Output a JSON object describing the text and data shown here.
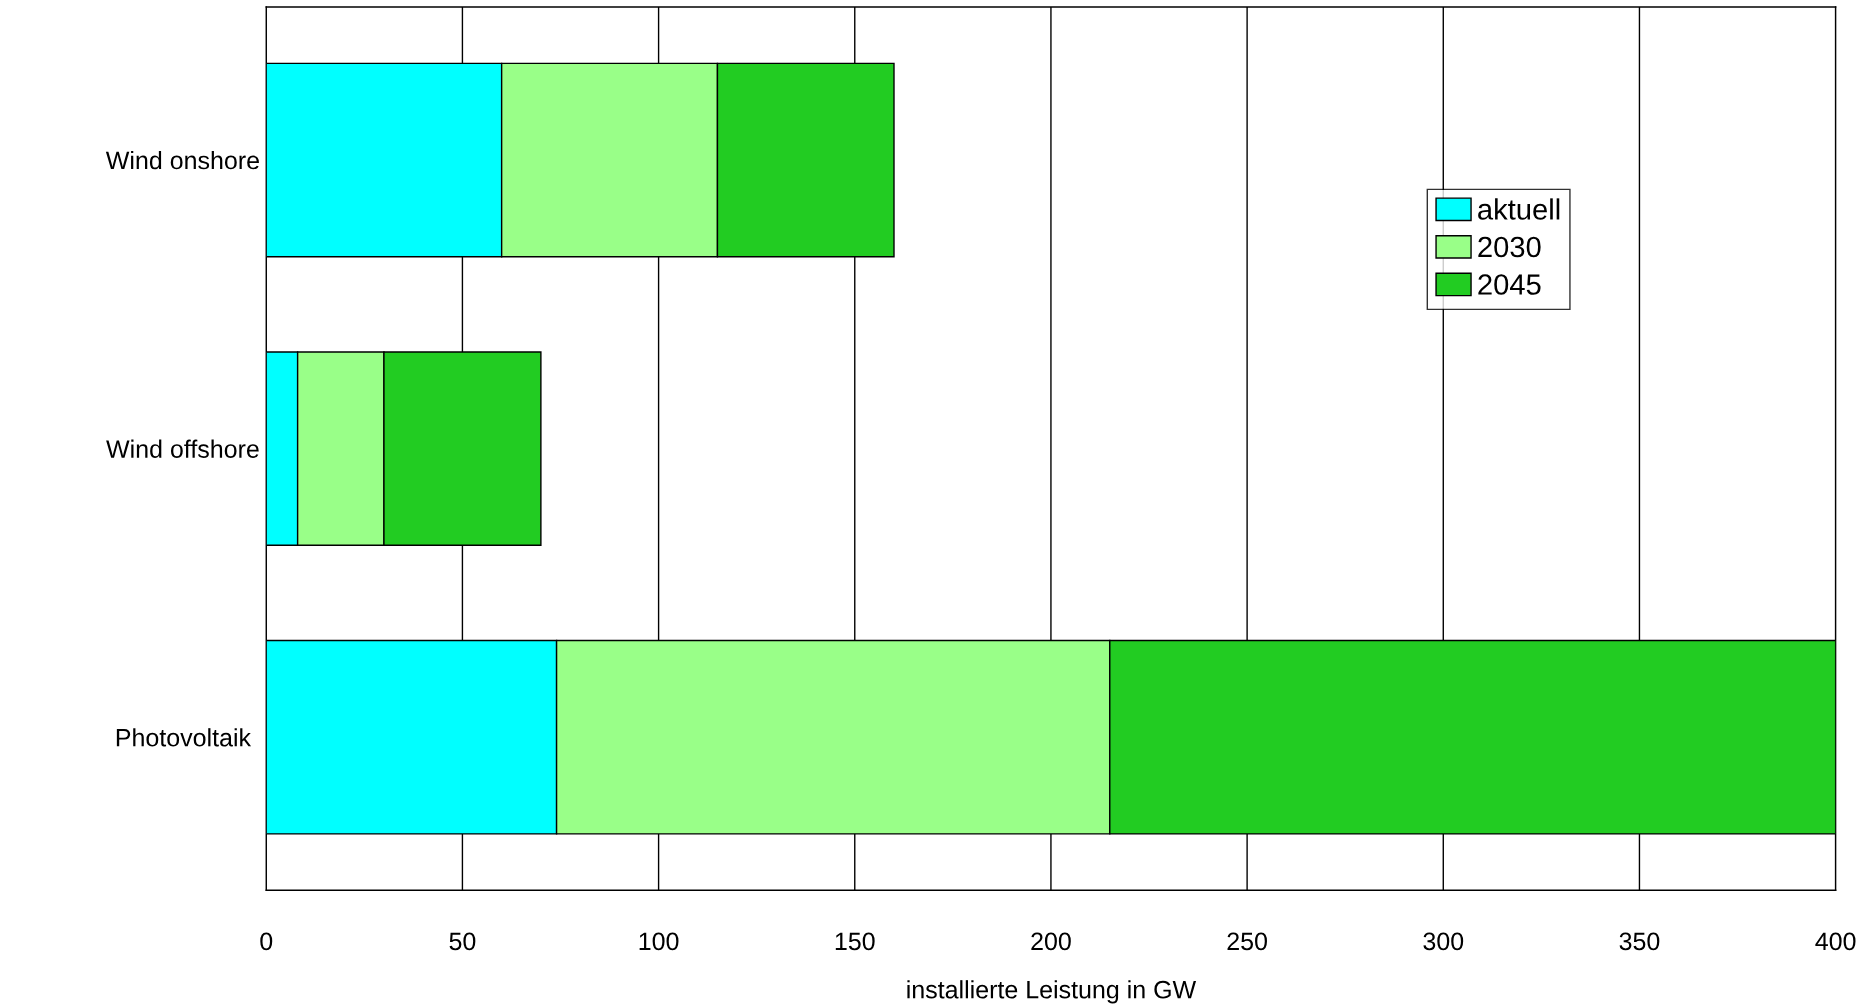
{
  "chart_data": {
    "type": "bar",
    "orientation": "horizontal",
    "stacked": true,
    "xlabel": "installierte Leistung in GW",
    "categories": [
      "Wind onshore",
      "Wind offshore",
      "Photovoltaik"
    ],
    "series": [
      {
        "name": "aktuell",
        "color": "#00ffff",
        "values": [
          60,
          8,
          74
        ]
      },
      {
        "name": "2030",
        "color": "#99ff88",
        "values": [
          55,
          22,
          141
        ]
      },
      {
        "name": "2045",
        "color": "#22cc22",
        "values": [
          45,
          40,
          185
        ]
      }
    ],
    "xlim": [
      0,
      400
    ],
    "xticks": [
      0,
      50,
      100,
      150,
      200,
      250,
      300,
      350,
      400
    ],
    "grid": "x",
    "legend": "top right"
  }
}
